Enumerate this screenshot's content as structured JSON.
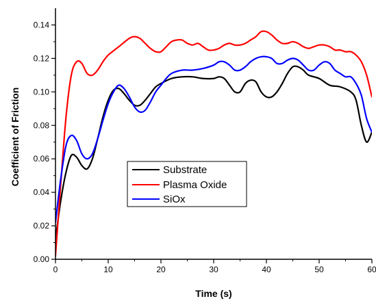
{
  "chart_data": {
    "type": "line",
    "title": "",
    "xlabel": "Time (s)",
    "ylabel": "Coefficient of Friction",
    "xlim": [
      0,
      60
    ],
    "ylim": [
      0,
      0.15
    ],
    "x_ticks": [
      0,
      10,
      20,
      30,
      40,
      50,
      60
    ],
    "y_ticks": [
      0.0,
      0.02,
      0.04,
      0.06,
      0.08,
      0.1,
      0.12,
      0.14
    ],
    "x_tick_labels": [
      "0",
      "10",
      "20",
      "30",
      "40",
      "50",
      "60"
    ],
    "y_tick_labels": [
      "0.00",
      "0.02",
      "0.04",
      "0.06",
      "0.08",
      "0.10",
      "0.12",
      "0.14"
    ],
    "grid": false,
    "legend_position": "center-left",
    "series": [
      {
        "name": "Substrate",
        "color": "#000000",
        "points": [
          [
            0,
            0.012
          ],
          [
            1,
            0.035
          ],
          [
            2,
            0.052
          ],
          [
            3,
            0.062
          ],
          [
            4,
            0.061
          ],
          [
            5,
            0.056
          ],
          [
            6,
            0.054
          ],
          [
            7,
            0.06
          ],
          [
            8,
            0.072
          ],
          [
            9,
            0.085
          ],
          [
            10,
            0.095
          ],
          [
            11,
            0.101
          ],
          [
            12,
            0.102
          ],
          [
            13,
            0.099
          ],
          [
            14,
            0.095
          ],
          [
            15,
            0.092
          ],
          [
            16,
            0.092
          ],
          [
            17,
            0.095
          ],
          [
            18,
            0.099
          ],
          [
            19,
            0.103
          ],
          [
            20,
            0.105
          ],
          [
            22,
            0.108
          ],
          [
            24,
            0.109
          ],
          [
            26,
            0.109
          ],
          [
            28,
            0.108
          ],
          [
            30,
            0.108
          ],
          [
            31,
            0.109
          ],
          [
            32,
            0.108
          ],
          [
            33,
            0.104
          ],
          [
            34,
            0.1
          ],
          [
            35,
            0.1
          ],
          [
            36,
            0.105
          ],
          [
            37,
            0.107
          ],
          [
            38,
            0.106
          ],
          [
            39,
            0.1
          ],
          [
            40,
            0.097
          ],
          [
            41,
            0.097
          ],
          [
            42,
            0.1
          ],
          [
            43,
            0.105
          ],
          [
            44,
            0.111
          ],
          [
            45,
            0.115
          ],
          [
            46,
            0.115
          ],
          [
            47,
            0.113
          ],
          [
            48,
            0.11
          ],
          [
            50,
            0.108
          ],
          [
            52,
            0.104
          ],
          [
            54,
            0.103
          ],
          [
            56,
            0.1
          ],
          [
            57,
            0.095
          ],
          [
            58,
            0.08
          ],
          [
            59,
            0.07
          ],
          [
            60,
            0.076
          ]
        ]
      },
      {
        "name": "Plasma Oxide",
        "color": "#ff0000",
        "points": [
          [
            0,
            0.002
          ],
          [
            1,
            0.045
          ],
          [
            2,
            0.085
          ],
          [
            3,
            0.11
          ],
          [
            4,
            0.118
          ],
          [
            5,
            0.117
          ],
          [
            6,
            0.111
          ],
          [
            7,
            0.11
          ],
          [
            8,
            0.113
          ],
          [
            9,
            0.118
          ],
          [
            10,
            0.122
          ],
          [
            12,
            0.127
          ],
          [
            14,
            0.132
          ],
          [
            15,
            0.133
          ],
          [
            16,
            0.132
          ],
          [
            17,
            0.129
          ],
          [
            18,
            0.126
          ],
          [
            19,
            0.124
          ],
          [
            20,
            0.124
          ],
          [
            21,
            0.127
          ],
          [
            22,
            0.13
          ],
          [
            23,
            0.131
          ],
          [
            24,
            0.131
          ],
          [
            25,
            0.129
          ],
          [
            26,
            0.128
          ],
          [
            27,
            0.129
          ],
          [
            28,
            0.127
          ],
          [
            29,
            0.125
          ],
          [
            30,
            0.125
          ],
          [
            31,
            0.126
          ],
          [
            32,
            0.128
          ],
          [
            33,
            0.129
          ],
          [
            34,
            0.128
          ],
          [
            35,
            0.128
          ],
          [
            36,
            0.129
          ],
          [
            37,
            0.131
          ],
          [
            38,
            0.133
          ],
          [
            39,
            0.136
          ],
          [
            40,
            0.136
          ],
          [
            41,
            0.134
          ],
          [
            42,
            0.131
          ],
          [
            43,
            0.129
          ],
          [
            44,
            0.129
          ],
          [
            45,
            0.13
          ],
          [
            46,
            0.129
          ],
          [
            47,
            0.127
          ],
          [
            48,
            0.126
          ],
          [
            49,
            0.127
          ],
          [
            50,
            0.128
          ],
          [
            51,
            0.128
          ],
          [
            52,
            0.127
          ],
          [
            53,
            0.125
          ],
          [
            54,
            0.125
          ],
          [
            55,
            0.124
          ],
          [
            56,
            0.124
          ],
          [
            57,
            0.122
          ],
          [
            58,
            0.118
          ],
          [
            59,
            0.11
          ],
          [
            60,
            0.097
          ]
        ]
      },
      {
        "name": "SiOx",
        "color": "#0000ff",
        "points": [
          [
            0,
            0.022
          ],
          [
            1,
            0.048
          ],
          [
            2,
            0.068
          ],
          [
            3,
            0.074
          ],
          [
            4,
            0.071
          ],
          [
            5,
            0.063
          ],
          [
            6,
            0.06
          ],
          [
            7,
            0.063
          ],
          [
            8,
            0.072
          ],
          [
            9,
            0.083
          ],
          [
            10,
            0.093
          ],
          [
            11,
            0.1
          ],
          [
            12,
            0.104
          ],
          [
            13,
            0.102
          ],
          [
            14,
            0.097
          ],
          [
            15,
            0.091
          ],
          [
            16,
            0.088
          ],
          [
            17,
            0.089
          ],
          [
            18,
            0.094
          ],
          [
            19,
            0.1
          ],
          [
            20,
            0.104
          ],
          [
            21,
            0.108
          ],
          [
            22,
            0.111
          ],
          [
            24,
            0.113
          ],
          [
            26,
            0.113
          ],
          [
            28,
            0.114
          ],
          [
            30,
            0.116
          ],
          [
            31,
            0.118
          ],
          [
            32,
            0.118
          ],
          [
            33,
            0.116
          ],
          [
            34,
            0.113
          ],
          [
            35,
            0.113
          ],
          [
            36,
            0.115
          ],
          [
            37,
            0.118
          ],
          [
            38,
            0.12
          ],
          [
            39,
            0.121
          ],
          [
            40,
            0.121
          ],
          [
            41,
            0.12
          ],
          [
            42,
            0.117
          ],
          [
            43,
            0.117
          ],
          [
            44,
            0.119
          ],
          [
            45,
            0.12
          ],
          [
            46,
            0.119
          ],
          [
            47,
            0.116
          ],
          [
            48,
            0.113
          ],
          [
            49,
            0.113
          ],
          [
            50,
            0.116
          ],
          [
            51,
            0.118
          ],
          [
            52,
            0.117
          ],
          [
            53,
            0.113
          ],
          [
            54,
            0.111
          ],
          [
            55,
            0.109
          ],
          [
            56,
            0.109
          ],
          [
            57,
            0.105
          ],
          [
            58,
            0.098
          ],
          [
            59,
            0.084
          ],
          [
            60,
            0.076
          ]
        ]
      }
    ]
  }
}
